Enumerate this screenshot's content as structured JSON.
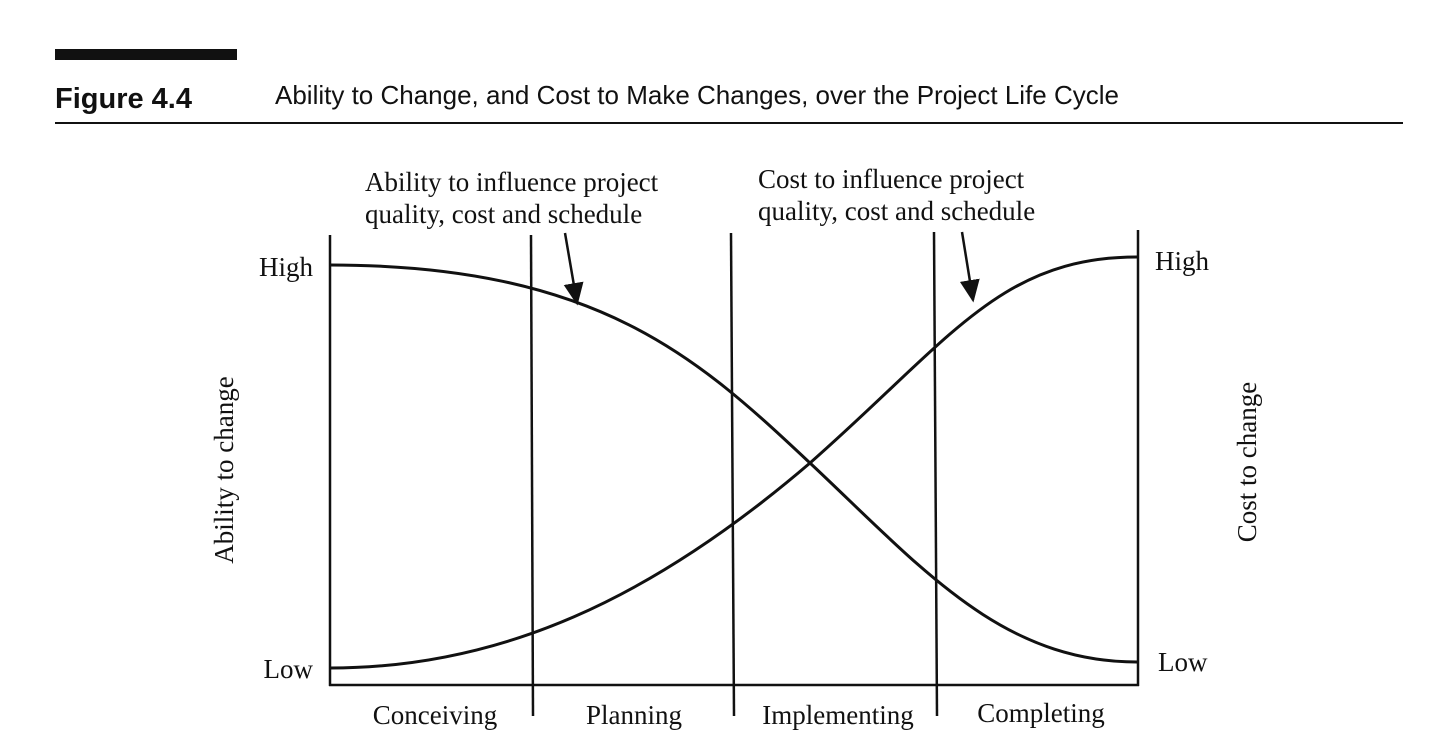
{
  "figure": {
    "label": "Figure 4.4",
    "title": "Ability to Change, and Cost to Make Changes, over the Project Life Cycle"
  },
  "annotations": [
    {
      "lines": [
        "Ability to influence project",
        "quality, cost and schedule"
      ]
    },
    {
      "lines": [
        "Cost to influence project",
        "quality, cost and schedule"
      ]
    }
  ],
  "axes": {
    "left": {
      "title": "Ability to change",
      "high": "High",
      "low": "Low"
    },
    "right": {
      "title": "Cost to change",
      "high": "High",
      "low": "Low"
    }
  },
  "phases": [
    "Conceiving",
    "Planning",
    "Implementing",
    "Completing"
  ]
}
